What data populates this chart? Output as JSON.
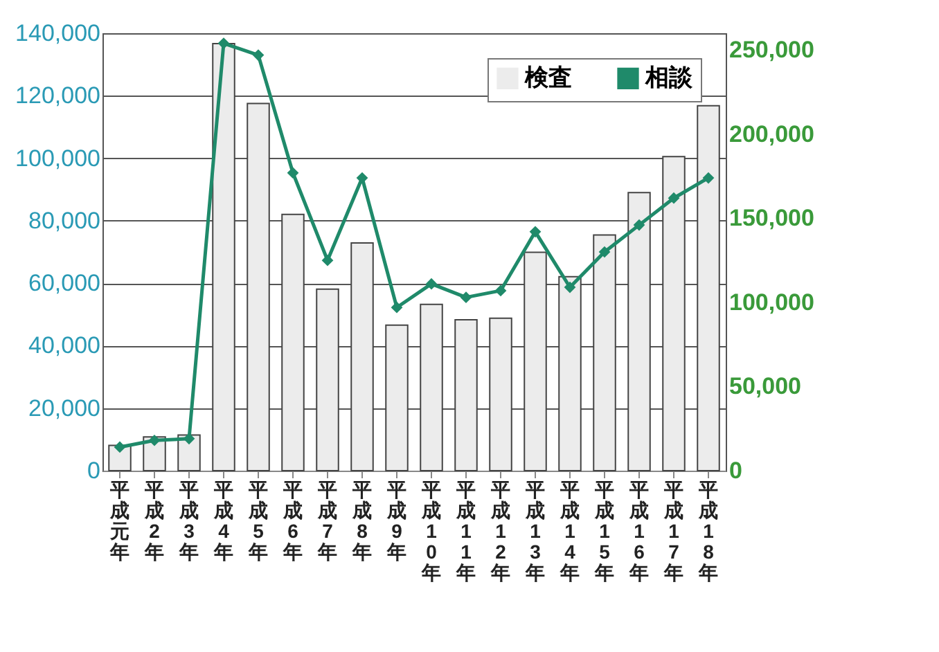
{
  "chart_data": {
    "type": "bar",
    "categories": [
      "平成元年",
      "平成2年",
      "平成3年",
      "平成4年",
      "平成5年",
      "平成6年",
      "平成7年",
      "平成8年",
      "平成9年",
      "平成10年",
      "平成11年",
      "平成12年",
      "平成13年",
      "平成14年",
      "平成15年",
      "平成16年",
      "平成17年",
      "平成18年"
    ],
    "series": [
      {
        "name": "検査",
        "color": "#ececec",
        "values": [
          8100,
          10800,
          11400,
          136700,
          117500,
          82000,
          58100,
          72900,
          46600,
          53200,
          48300,
          48800,
          69900,
          62100,
          75400,
          89000,
          100500,
          116800
        ]
      },
      {
        "name": "相談",
        "type": "line",
        "axis": "y2",
        "color": "#1f8a6a",
        "values": [
          14000,
          18000,
          19000,
          254000,
          247000,
          177000,
          125000,
          174000,
          97000,
          111000,
          103000,
          107000,
          142000,
          109000,
          130000,
          146000,
          162000,
          174000
        ]
      }
    ],
    "ylim": [
      0,
      140000
    ],
    "yticks": [
      0,
      {
        "value": 20000,
        "label": "20,000"
      },
      {
        "value": 40000,
        "label": "40,000"
      },
      {
        "value": 60000,
        "label": "60,000"
      },
      {
        "value": 80000,
        "label": "80,000"
      },
      {
        "value": 100000,
        "label": "100,000"
      },
      {
        "value": 120000,
        "label": "120,000"
      },
      {
        "value": 140000,
        "label": "140,000"
      }
    ],
    "y2lim": [
      0,
      260000
    ],
    "y2ticks": [
      0,
      {
        "value": 50000,
        "label": "50,000"
      },
      {
        "value": 100000,
        "label": "100,000"
      },
      {
        "value": 150000,
        "label": "150,000"
      },
      {
        "value": 200000,
        "label": "200,000"
      },
      {
        "value": 250000,
        "label": "250,000"
      }
    ],
    "grid": "y",
    "legend": "top right",
    "marker": "diamond",
    "line_style": "solid"
  }
}
